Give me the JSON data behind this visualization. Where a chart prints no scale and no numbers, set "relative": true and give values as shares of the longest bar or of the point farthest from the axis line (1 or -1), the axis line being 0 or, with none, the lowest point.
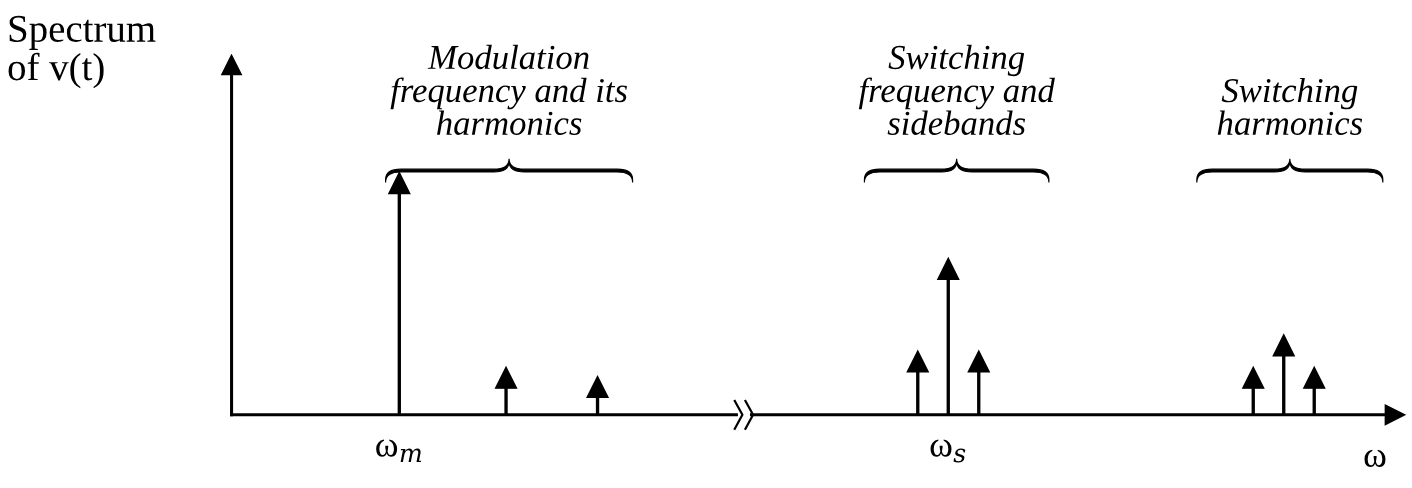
{
  "chart_data": {
    "type": "lollipop",
    "relative": true,
    "marker": "triangle",
    "color": "#000000",
    "ylabel": "Spectrum\nof v(t)",
    "xlabel": "ω",
    "categories": [
      null,
      null,
      null,
      null,
      null,
      null,
      null,
      null,
      null,
      null,
      null,
      "ω$_{m}$",
      null,
      null,
      null,
      null,
      null,
      null,
      null,
      null,
      null,
      null,
      null,
      null,
      null,
      null,
      null,
      null,
      null,
      null,
      null,
      null,
      null,
      null,
      null,
      null,
      null,
      null,
      null,
      null,
      null,
      null,
      null,
      null,
      null,
      null,
      null,
      "ω$_{s}$",
      null,
      null,
      null,
      null,
      null,
      null,
      null,
      null,
      null,
      null,
      null,
      null,
      null,
      null,
      null,
      null,
      null,
      null,
      null,
      null,
      null,
      null,
      null,
      null,
      null,
      null,
      null,
      null,
      null
    ],
    "values": [
      null,
      null,
      null,
      null,
      null,
      null,
      null,
      null,
      null,
      null,
      null,
      1,
      null,
      null,
      null,
      null,
      null,
      null,
      0.16,
      null,
      null,
      null,
      null,
      null,
      0.12,
      null,
      null,
      null,
      null,
      null,
      null,
      null,
      null,
      null,
      null,
      null,
      null,
      null,
      null,
      null,
      null,
      null,
      null,
      null,
      null,
      0.23,
      null,
      0.63,
      null,
      0.23,
      null,
      null,
      null,
      null,
      null,
      null,
      null,
      null,
      null,
      null,
      null,
      null,
      null,
      null,
      null,
      null,
      null,
      0.16,
      null,
      0.3,
      null,
      0.16,
      null,
      null,
      null,
      null,
      null
    ],
    "annotations": [
      "Modulation\nfrequency and its\nharmonics",
      "Switching\nfrequency and\nsidebands",
      "Switching\nharmonics"
    ]
  }
}
